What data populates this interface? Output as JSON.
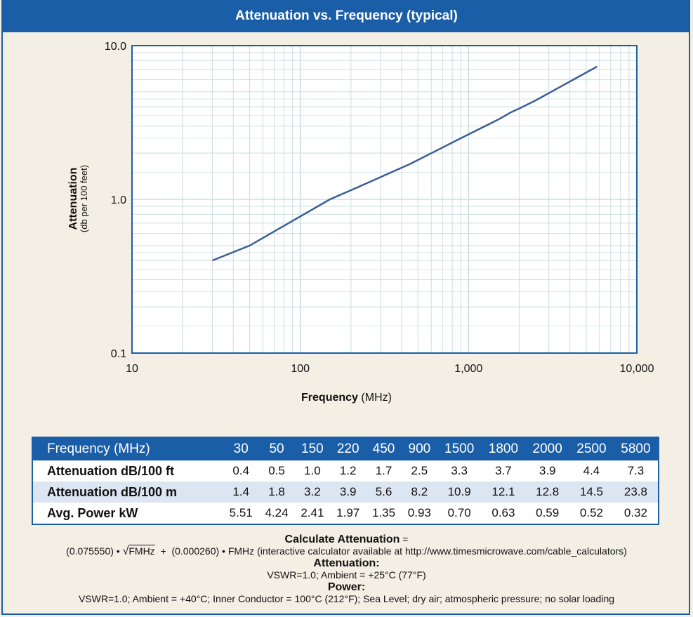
{
  "chart_data": {
    "type": "line",
    "title": "Attenuation vs. Frequency (typical)",
    "xlabel_main": "Frequency",
    "xlabel_unit": "(MHz)",
    "ylabel_main": "Attenuation",
    "ylabel_sub": "(db per 100 feet)",
    "x_scale": "log",
    "y_scale": "log",
    "xlim": [
      10,
      10000
    ],
    "ylim": [
      0.1,
      10.0
    ],
    "x_tick_labels": [
      "10",
      "100",
      "1,000",
      "10,000"
    ],
    "y_tick_labels": [
      "10.0",
      "1.0",
      "0.1"
    ],
    "grid": true,
    "series": [
      {
        "x": [
          30,
          50,
          150,
          220,
          450,
          900,
          1500,
          1800,
          2000,
          2500,
          5800
        ],
        "y": [
          0.4,
          0.5,
          1.0,
          1.2,
          1.7,
          2.5,
          3.3,
          3.7,
          3.9,
          4.4,
          7.3
        ]
      }
    ],
    "colors": {
      "line": "#3b5f96",
      "grid": "#c9dede",
      "axis": "#1a5ea8"
    }
  },
  "table": {
    "header_label": "Frequency (MHz)",
    "frequencies": [
      "30",
      "50",
      "150",
      "220",
      "450",
      "900",
      "1500",
      "1800",
      "2000",
      "2500",
      "5800"
    ],
    "rows": [
      {
        "label": "Attenuation dB/100 ft",
        "values": [
          "0.4",
          "0.5",
          "1.0",
          "1.2",
          "1.7",
          "2.5",
          "3.3",
          "3.7",
          "3.9",
          "4.4",
          "7.3"
        ]
      },
      {
        "label": "Attenuation dB/100 m",
        "values": [
          "1.4",
          "1.8",
          "3.2",
          "3.9",
          "5.6",
          "8.2",
          "10.9",
          "12.1",
          "12.8",
          "14.5",
          "23.8"
        ]
      },
      {
        "label": "Avg. Power kW",
        "values": [
          "5.51",
          "4.24",
          "2.41",
          "1.97",
          "1.35",
          "0.93",
          "0.70",
          "0.63",
          "0.59",
          "0.52",
          "0.32"
        ]
      }
    ]
  },
  "notes": {
    "calc_heading": "Calculate Attenuation",
    "calc_eq": "=",
    "calc_coef1": "(0.075550) •",
    "calc_sqrt_sign": "√",
    "calc_sqrt_var": "FMHz",
    "calc_plus": "+",
    "calc_coef2": "(0.000260) •",
    "calc_var2": "FMHz",
    "calc_note": "(interactive calculator available at http://www.timesmicrowave.com/cable_calculators)",
    "att_heading": "Attenuation:",
    "att_conditions": "VSWR=1.0; Ambient = +25°C (77°F)",
    "power_heading": "Power:",
    "power_conditions": "VSWR=1.0; Ambient = +40°C; Inner Conductor = 100°C (212°F); Sea Level; dry air; atmospheric pressure; no solar loading"
  }
}
